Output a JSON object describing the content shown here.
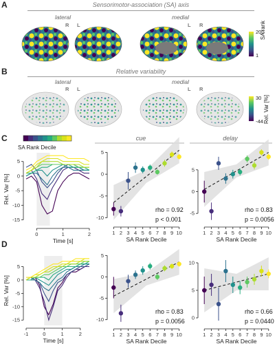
{
  "panels": {
    "A": {
      "letter": "A",
      "title": "Sensorimotor-association (SA) axis",
      "lateral": "lateral",
      "medial": "medial",
      "hemi_labels": [
        "R",
        "L",
        "L",
        "R"
      ],
      "colorbar": {
        "max": "200",
        "min": "1",
        "label": "SA rank"
      }
    },
    "B": {
      "letter": "B",
      "title": "Relative variability",
      "lateral": "lateral",
      "medial": "medial",
      "hemi_labels": [
        "R",
        "L",
        "L",
        "R"
      ],
      "colorbar": {
        "max": "30",
        "min": "-44",
        "label": "Rel. Var [%]"
      }
    },
    "C": {
      "letter": "C",
      "legend_label": "SA Rank Decile",
      "cue": "cue",
      "delay": "delay"
    },
    "D": {
      "letter": "D"
    }
  },
  "colors": {
    "deciles": [
      "#440154",
      "#472d7b",
      "#3b528b",
      "#2c728e",
      "#21918c",
      "#28ae80",
      "#5ec962",
      "#addc30",
      "#d8e219",
      "#fde725"
    ],
    "ci_band": "#dcdcdc",
    "shade": "#eeeeee"
  },
  "chart_data": [
    {
      "id": "C-time",
      "type": "line",
      "xlabel": "Time [s]",
      "ylabel": "Rel. Var [%]",
      "xlim": [
        -0.4,
        2.0
      ],
      "ylim": [
        -17,
        8
      ],
      "xticks": [
        0,
        1,
        2
      ],
      "yticks": [
        5,
        0,
        -5,
        -10,
        -15
      ],
      "shaded_window": [
        0,
        0.5
      ],
      "x": [
        -0.4,
        -0.2,
        0,
        0.2,
        0.4,
        0.6,
        0.8,
        1.0,
        1.2,
        1.4,
        1.6,
        1.8,
        2.0
      ],
      "series": [
        {
          "values": [
            -1,
            0,
            -2,
            -10,
            -13,
            -12,
            -5,
            -2,
            0,
            1,
            1,
            0,
            -1
          ]
        },
        {
          "values": [
            1,
            2,
            -1,
            -6,
            -8,
            -4,
            -1,
            2,
            3,
            3,
            2,
            1,
            1
          ]
        },
        {
          "values": [
            3,
            4,
            2,
            -2,
            -4,
            -2,
            1,
            3,
            4,
            4,
            3,
            2,
            2
          ]
        },
        {
          "values": [
            0,
            1,
            1,
            -1,
            -3,
            0,
            2,
            3,
            3,
            2,
            2,
            2,
            2
          ]
        },
        {
          "values": [
            0,
            1,
            2,
            2,
            0,
            2,
            3,
            4,
            3,
            3,
            3,
            2,
            2
          ]
        },
        {
          "values": [
            1,
            1,
            2,
            3,
            3,
            4,
            4,
            4,
            4,
            3,
            3,
            3,
            2
          ]
        },
        {
          "values": [
            1,
            2,
            3,
            4,
            4,
            4,
            4,
            4,
            4,
            4,
            3,
            3,
            3
          ]
        },
        {
          "values": [
            1,
            2,
            3,
            5,
            5,
            5,
            5,
            4,
            4,
            4,
            4,
            3,
            3
          ]
        },
        {
          "values": [
            1,
            2,
            4,
            5,
            6,
            6,
            6,
            5,
            5,
            5,
            5,
            4,
            4
          ]
        },
        {
          "values": [
            2,
            3,
            5,
            6,
            7,
            7,
            7,
            7,
            6,
            6,
            6,
            6,
            5
          ]
        }
      ]
    },
    {
      "id": "C-cue",
      "type": "scatter",
      "title": "cue",
      "xlabel": "SA Rank Decile",
      "xlim": [
        0.5,
        10.5
      ],
      "ylim": [
        -11.5,
        6.5
      ],
      "xticks": [
        1,
        2,
        3,
        4,
        5,
        6,
        7,
        8,
        9,
        10
      ],
      "yticks": [
        5,
        0,
        -5,
        -10
      ],
      "x": [
        1,
        2,
        3,
        4,
        5,
        6,
        7,
        8,
        9,
        10
      ],
      "values": [
        -8,
        -8.5,
        -1.5,
        1.5,
        1.0,
        1.5,
        0.5,
        2.5,
        4.5,
        4.0
      ],
      "errors": [
        1.5,
        1.2,
        2.0,
        1.2,
        0.8,
        0.7,
        0.6,
        0.8,
        0.7,
        0.6
      ],
      "fit": [
        -6.5,
        5.5
      ],
      "stats": [
        "rho = 0.92",
        "p < 0.001"
      ]
    },
    {
      "id": "C-delay",
      "type": "scatter",
      "title": "delay",
      "xlabel": "SA Rank Decile",
      "xlim": [
        0.5,
        10.5
      ],
      "ylim": [
        -7.5,
        10.5
      ],
      "xticks": [
        1,
        2,
        3,
        4,
        5,
        6,
        7,
        8,
        9,
        10
      ],
      "yticks": [
        5,
        0,
        -5
      ],
      "x": [
        1,
        2,
        3,
        4,
        5,
        6,
        7,
        8,
        9,
        10
      ],
      "values": [
        0,
        -4.5,
        6.5,
        3,
        4,
        4.5,
        7.5,
        6,
        9,
        8
      ],
      "errors": [
        2.5,
        2.0,
        1.5,
        1.2,
        1.0,
        0.8,
        0.8,
        0.9,
        0.7,
        0.7
      ],
      "fit": [
        0.5,
        9
      ],
      "stats": [
        "rho = 0.83",
        "p = 0.0056"
      ]
    },
    {
      "id": "D-time",
      "type": "line",
      "xlabel": "Time [s]",
      "ylabel": "Rel. Var [%]",
      "xlim": [
        -1,
        2.5
      ],
      "ylim": [
        -17,
        9
      ],
      "xticks": [
        -1,
        0,
        1,
        2
      ],
      "yticks": [
        5,
        0,
        -5,
        -10,
        -15
      ],
      "shaded_window": [
        0,
        1
      ],
      "x": [
        -1,
        -0.75,
        -0.5,
        -0.25,
        0,
        0.25,
        0.5,
        0.75,
        1.0,
        1.25,
        1.5,
        1.75,
        2.0,
        2.25,
        2.5
      ],
      "series": [
        {
          "values": [
            0,
            0,
            1,
            -2,
            -10,
            -13,
            -9,
            -3,
            -1,
            2,
            3,
            3,
            4,
            5,
            5
          ]
        },
        {
          "values": [
            0,
            1,
            0,
            -3,
            -8,
            -15,
            -10,
            -4,
            -2,
            1,
            3,
            4,
            4,
            5,
            5
          ]
        },
        {
          "values": [
            1,
            1,
            0,
            -1,
            -5,
            -8,
            -4,
            -1,
            0,
            2,
            3,
            4,
            5,
            5,
            6
          ]
        },
        {
          "values": [
            0,
            0,
            0,
            -1,
            -3,
            -4,
            -2,
            0,
            1,
            3,
            4,
            5,
            5,
            6,
            6
          ]
        },
        {
          "values": [
            0,
            0,
            1,
            0,
            -1,
            -2,
            0,
            2,
            3,
            4,
            4,
            5,
            6,
            6,
            6
          ]
        },
        {
          "values": [
            0,
            0,
            1,
            1,
            1,
            0,
            2,
            3,
            4,
            5,
            5,
            5,
            6,
            6,
            7
          ]
        },
        {
          "values": [
            0,
            1,
            1,
            1,
            2,
            2,
            3,
            4,
            5,
            5,
            6,
            6,
            6,
            7,
            7
          ]
        },
        {
          "values": [
            0,
            1,
            1,
            2,
            3,
            3,
            4,
            5,
            5,
            6,
            6,
            6,
            7,
            7,
            7
          ]
        },
        {
          "values": [
            0,
            1,
            2,
            2,
            3,
            4,
            5,
            5,
            6,
            6,
            7,
            7,
            7,
            8,
            8
          ]
        },
        {
          "values": [
            1,
            1,
            2,
            3,
            4,
            5,
            6,
            6,
            7,
            7,
            7,
            8,
            8,
            8,
            8
          ]
        }
      ]
    },
    {
      "id": "D-cue",
      "type": "scatter",
      "xlabel": "SA Rank Decile",
      "xlim": [
        0.5,
        10.5
      ],
      "ylim": [
        -11.5,
        6.5
      ],
      "xticks": [
        1,
        2,
        3,
        4,
        5,
        6,
        7,
        8,
        9,
        10
      ],
      "yticks": [
        5,
        0,
        -5,
        -10
      ],
      "x": [
        1,
        2,
        3,
        4,
        5,
        6,
        7,
        8,
        9,
        10
      ],
      "values": [
        -2.5,
        -8.5,
        -1.0,
        0.5,
        1.5,
        2.5,
        0,
        2.0,
        2.5,
        3.0
      ],
      "errors": [
        2.5,
        2.0,
        1.5,
        1.0,
        1.0,
        0.8,
        0.7,
        0.7,
        0.6,
        0.6
      ],
      "fit": [
        -4.5,
        3.5
      ],
      "stats": [
        "rho = 0.83",
        "p = 0.0056"
      ]
    },
    {
      "id": "D-delay",
      "type": "scatter",
      "xlabel": "SA Rank Decile",
      "xlim": [
        0.5,
        10.5
      ],
      "ylim": [
        -1.5,
        12.5
      ],
      "xticks": [
        1,
        2,
        3,
        4,
        5,
        6,
        7,
        8,
        9,
        10
      ],
      "yticks": [
        10,
        5,
        0
      ],
      "x": [
        1,
        2,
        3,
        4,
        5,
        6,
        7,
        8,
        9,
        10
      ],
      "values": [
        5,
        6,
        2.5,
        8.5,
        6,
        5.5,
        6.5,
        7,
        8.5,
        8
      ],
      "errors": [
        2.5,
        2.0,
        3.0,
        2.0,
        1.5,
        1.2,
        1.0,
        1.0,
        1.0,
        0.8
      ],
      "fit": [
        5,
        8
      ],
      "stats": [
        "rho = 0.66",
        "p = 0.0440"
      ]
    }
  ]
}
